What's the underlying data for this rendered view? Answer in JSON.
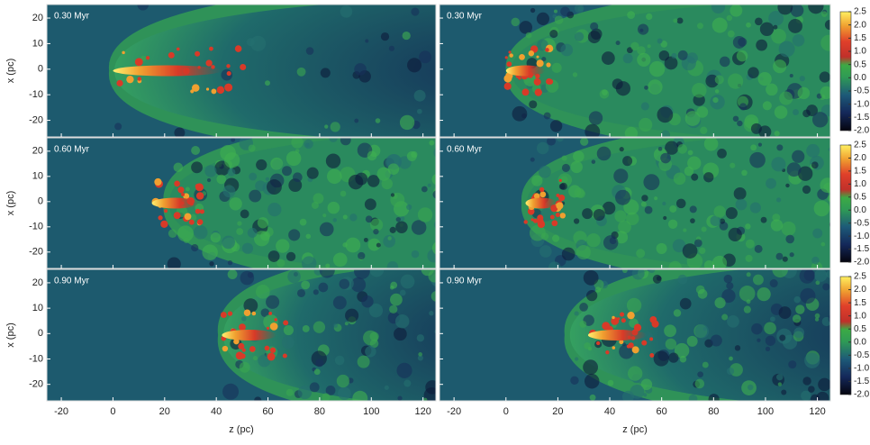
{
  "figure": {
    "x_label": "z (pc)",
    "y_label": "x (pc)",
    "xlim": [
      -25.6,
      125
    ],
    "xticks": [
      -20,
      0,
      20,
      40,
      60,
      80,
      100,
      120
    ],
    "ylim": [
      -26.5,
      25.3
    ],
    "yticks": [
      -20,
      -10,
      0,
      10,
      20
    ],
    "clim": [
      -2,
      2.5
    ],
    "cticks": [
      {
        "value": 2.5,
        "label": "2.5"
      },
      {
        "value": 2,
        "label": "2.0"
      },
      {
        "value": 1.5,
        "label": "1.5"
      },
      {
        "value": 1,
        "label": "1.0"
      },
      {
        "value": 0.5,
        "label": "0.5"
      },
      {
        "value": 0,
        "label": "0.0"
      },
      {
        "value": -0.5,
        "label": "-0.5"
      },
      {
        "value": -1,
        "label": "-1.0"
      },
      {
        "value": -1.5,
        "label": "-1.5"
      },
      {
        "value": -2,
        "label": "-2.0"
      }
    ],
    "panels": [
      {
        "label": "0.30 Myr"
      },
      {
        "label": "0.30 Myr"
      },
      {
        "label": "0.60 Myr"
      },
      {
        "label": "0.60 Myr"
      },
      {
        "label": "0.90 Myr"
      },
      {
        "label": "0.90 Myr"
      }
    ]
  }
}
